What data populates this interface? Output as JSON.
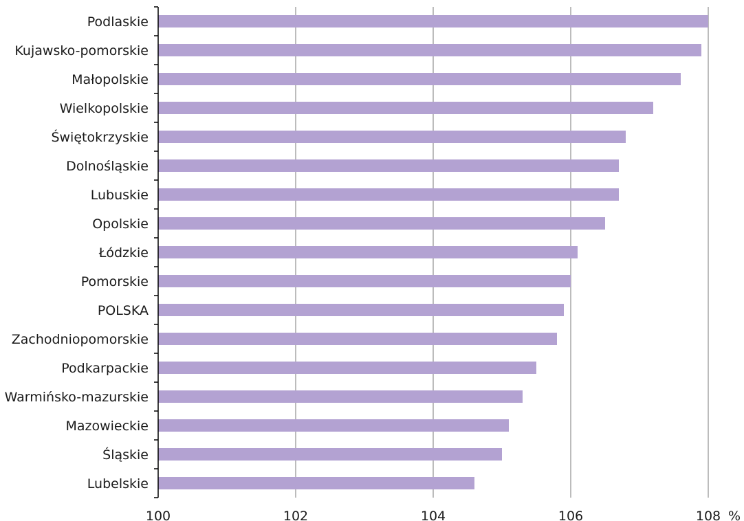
{
  "chart_data": {
    "type": "bar",
    "orientation": "horizontal",
    "title": "",
    "xlabel": "",
    "ylabel": "",
    "x_unit": "%",
    "xlim": [
      100,
      108
    ],
    "xticks": [
      100,
      102,
      104,
      106,
      108
    ],
    "grid": "vertical",
    "bar_color": "#b3a2d2",
    "categories": [
      "Podlaskie",
      "Kujawsko-pomorskie",
      "Małopolskie",
      "Wielkopolskie",
      "Świętokrzyskie",
      "Dolnośląskie",
      "Lubuskie",
      "Opolskie",
      "Łódzkie",
      "Pomorskie",
      "POLSKA",
      "Zachodniopomorskie",
      "Podkarpackie",
      "Warmińsko-mazurskie",
      "Mazowieckie",
      "Śląskie",
      "Lubelskie"
    ],
    "values": [
      108.0,
      107.9,
      107.6,
      107.2,
      106.8,
      106.7,
      106.7,
      106.5,
      106.1,
      106.0,
      105.9,
      105.8,
      105.5,
      105.3,
      105.1,
      105.0,
      104.6
    ]
  }
}
